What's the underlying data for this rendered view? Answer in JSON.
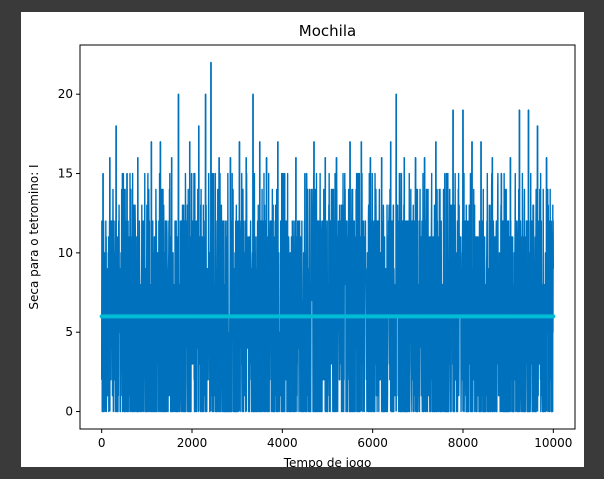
{
  "colors": {
    "window_background": "#3a3a3a",
    "figure_background": "#ffffff",
    "series_main": "#0072bd",
    "series_mean": "#00bcd4"
  },
  "chart_data": {
    "type": "line",
    "title": "Mochila",
    "xlabel": "Tempo de jogo",
    "ylabel": "Seca para o tetromino: I",
    "xlim": [
      -480,
      10480
    ],
    "ylim": [
      -1.1,
      23.1
    ],
    "x_ticks": [
      0,
      2000,
      4000,
      6000,
      8000,
      10000
    ],
    "y_ticks": [
      0,
      5,
      10,
      15,
      20
    ],
    "grid": false,
    "legend": "none",
    "series": [
      {
        "role": "per-game drought",
        "x_range": [
          0,
          10000
        ],
        "note_points": "dense oscillating series ~10000 samples, values mostly 0-15, occasional spikes up to 22",
        "min": 0,
        "max": 22,
        "peaks": [
          {
            "x": 30,
            "y": 15
          },
          {
            "x": 180,
            "y": 16
          },
          {
            "x": 320,
            "y": 18
          },
          {
            "x": 560,
            "y": 15
          },
          {
            "x": 800,
            "y": 16
          },
          {
            "x": 1100,
            "y": 17
          },
          {
            "x": 1300,
            "y": 17
          },
          {
            "x": 1550,
            "y": 16
          },
          {
            "x": 1700,
            "y": 20
          },
          {
            "x": 1950,
            "y": 17
          },
          {
            "x": 2150,
            "y": 18
          },
          {
            "x": 2300,
            "y": 20
          },
          {
            "x": 2420,
            "y": 22
          },
          {
            "x": 2600,
            "y": 16
          },
          {
            "x": 2850,
            "y": 16
          },
          {
            "x": 3050,
            "y": 17
          },
          {
            "x": 3200,
            "y": 16
          },
          {
            "x": 3350,
            "y": 20
          },
          {
            "x": 3500,
            "y": 17
          },
          {
            "x": 3650,
            "y": 16
          },
          {
            "x": 3900,
            "y": 17
          },
          {
            "x": 4050,
            "y": 15
          },
          {
            "x": 4300,
            "y": 16
          },
          {
            "x": 4500,
            "y": 15
          },
          {
            "x": 4700,
            "y": 17
          },
          {
            "x": 4950,
            "y": 16
          },
          {
            "x": 5200,
            "y": 16
          },
          {
            "x": 5500,
            "y": 17
          },
          {
            "x": 5750,
            "y": 17
          },
          {
            "x": 5950,
            "y": 16
          },
          {
            "x": 6200,
            "y": 16
          },
          {
            "x": 6400,
            "y": 17
          },
          {
            "x": 6520,
            "y": 20
          },
          {
            "x": 6700,
            "y": 16
          },
          {
            "x": 6950,
            "y": 16
          },
          {
            "x": 7150,
            "y": 16
          },
          {
            "x": 7400,
            "y": 17
          },
          {
            "x": 7600,
            "y": 15
          },
          {
            "x": 7780,
            "y": 19
          },
          {
            "x": 8000,
            "y": 19
          },
          {
            "x": 8200,
            "y": 17
          },
          {
            "x": 8400,
            "y": 17
          },
          {
            "x": 8650,
            "y": 16
          },
          {
            "x": 8850,
            "y": 15
          },
          {
            "x": 9050,
            "y": 16
          },
          {
            "x": 9250,
            "y": 19
          },
          {
            "x": 9450,
            "y": 19
          },
          {
            "x": 9650,
            "y": 18
          },
          {
            "x": 9850,
            "y": 16
          },
          {
            "x": 9980,
            "y": 9
          }
        ]
      },
      {
        "role": "mean",
        "x": [
          0,
          10000
        ],
        "values": [
          6,
          6
        ]
      }
    ]
  }
}
